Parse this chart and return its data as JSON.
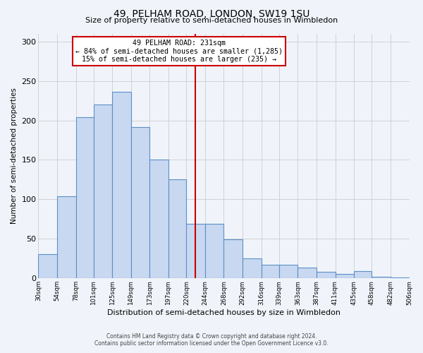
{
  "title": "49, PELHAM ROAD, LONDON, SW19 1SU",
  "subtitle": "Size of property relative to semi-detached houses in Wimbledon",
  "xlabel": "Distribution of semi-detached houses by size in Wimbledon",
  "ylabel": "Number of semi-detached properties",
  "footer_line1": "Contains HM Land Registry data © Crown copyright and database right 2024.",
  "footer_line2": "Contains public sector information licensed under the Open Government Licence v3.0.",
  "bin_labels": [
    "30sqm",
    "54sqm",
    "78sqm",
    "101sqm",
    "125sqm",
    "149sqm",
    "173sqm",
    "197sqm",
    "220sqm",
    "244sqm",
    "268sqm",
    "292sqm",
    "316sqm",
    "339sqm",
    "363sqm",
    "387sqm",
    "411sqm",
    "435sqm",
    "458sqm",
    "482sqm",
    "506sqm"
  ],
  "bar_values": [
    31,
    104,
    204,
    220,
    236,
    192,
    150,
    125,
    69,
    69,
    49,
    25,
    17,
    17,
    14,
    8,
    6,
    9,
    2,
    1
  ],
  "bar_color": "#c8d8f0",
  "bar_edge_color": "#5b8fc9",
  "bar_edge_width": 0.8,
  "vline_x": 231,
  "vline_color": "#cc0000",
  "vline_label": "49 PELHAM ROAD: 231sqm",
  "annotation_smaller": "← 84% of semi-detached houses are smaller (1,285)",
  "annotation_larger": "15% of semi-detached houses are larger (235) →",
  "annotation_box_color": "#ffffff",
  "annotation_box_edge_color": "#cc0000",
  "ylim": [
    0,
    310
  ],
  "yticks": [
    0,
    50,
    100,
    150,
    200,
    250,
    300
  ],
  "grid_color": "#cccccc",
  "background_color": "#f0f4fa"
}
